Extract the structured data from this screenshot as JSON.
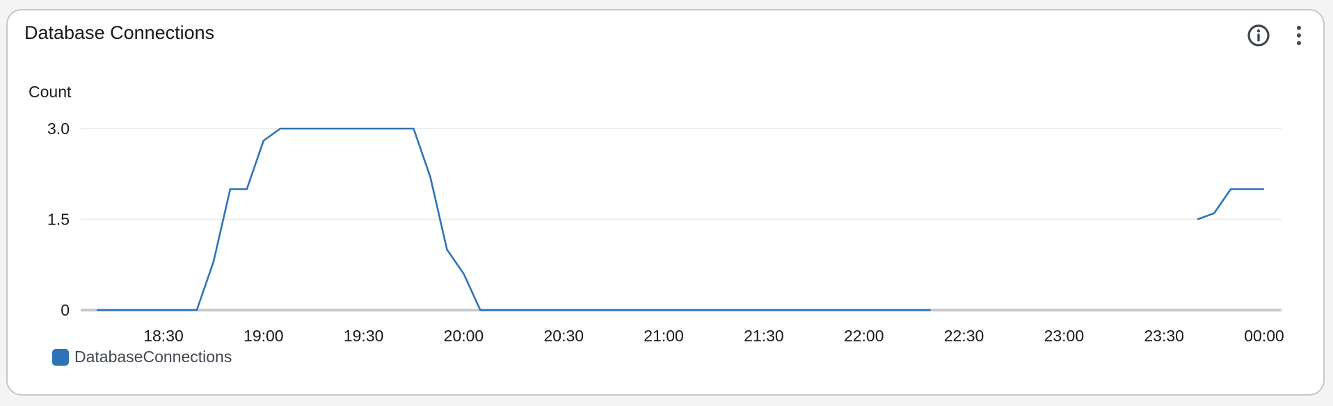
{
  "widget": {
    "title": "Database Connections"
  },
  "icons": {
    "info": "info-circle-icon",
    "menu": "vertical-ellipsis-icon"
  },
  "colors": {
    "series": "#2e73b8",
    "grid": "#e8e8ea",
    "baseline": "#c9c9cc"
  },
  "chart_data": {
    "type": "line",
    "ylabel": "Count",
    "ylim": [
      0,
      3
    ],
    "yticks": [
      {
        "value": 0,
        "label": "0"
      },
      {
        "value": 1.5,
        "label": "1.5"
      },
      {
        "value": 3,
        "label": "3.0"
      }
    ],
    "xlim": [
      "18:10",
      "00:00"
    ],
    "xticks": [
      "18:30",
      "19:00",
      "19:30",
      "20:00",
      "20:30",
      "21:00",
      "21:30",
      "22:00",
      "22:30",
      "23:00",
      "23:30",
      "00:00"
    ],
    "grid": true,
    "legend": "bottom-left",
    "series": [
      {
        "name": "DatabaseConnections",
        "color": "#2e73b8",
        "segments": [
          [
            [
              "18:10",
              0
            ],
            [
              "18:40",
              0
            ],
            [
              "18:45",
              0.8
            ],
            [
              "18:50",
              2
            ],
            [
              "18:55",
              2
            ],
            [
              "19:00",
              2.8
            ],
            [
              "19:05",
              3
            ],
            [
              "19:45",
              3
            ],
            [
              "19:50",
              2.2
            ],
            [
              "19:55",
              1
            ],
            [
              "20:00",
              0.6
            ],
            [
              "20:05",
              0
            ],
            [
              "22:20",
              0
            ]
          ],
          [
            [
              "23:40",
              1.5
            ],
            [
              "23:45",
              1.6
            ],
            [
              "23:50",
              2
            ],
            [
              "00:00",
              2
            ]
          ]
        ]
      }
    ]
  }
}
